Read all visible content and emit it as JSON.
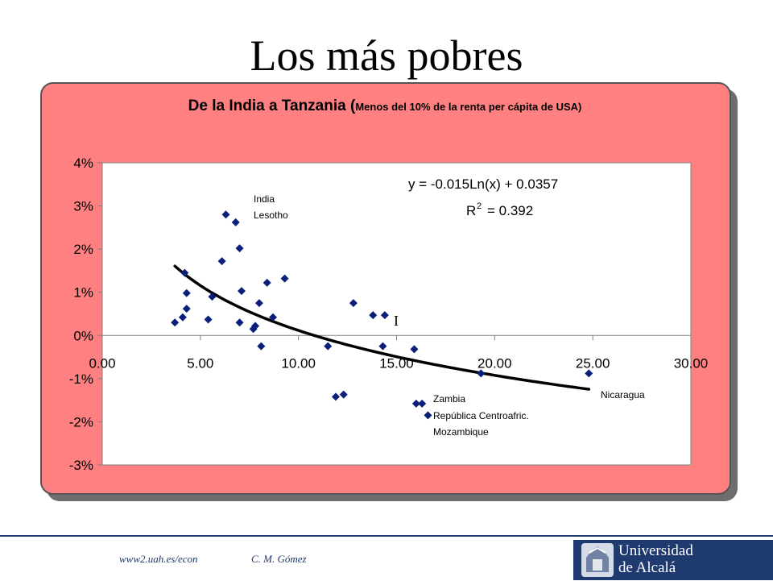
{
  "slide": {
    "title": "Los más pobres"
  },
  "footer": {
    "url": "www2.uah.es/econ",
    "author": "C. M. Gómez",
    "logo_line1": "Universidad",
    "logo_line2": "de Alcalá"
  },
  "chart_data": {
    "type": "scatter",
    "title": "De la India a Tanzania (",
    "subtitle": "Menos del 10% de la renta per cápita de USA)",
    "xlim": [
      0,
      30
    ],
    "ylim": [
      -0.03,
      0.04
    ],
    "x_ticks": [
      0,
      5,
      10,
      15,
      20,
      25,
      30
    ],
    "x_tick_labels": [
      "0.00",
      "5.00",
      "10.00",
      "15.00",
      "20.00",
      "25.00",
      "30.00"
    ],
    "y_ticks": [
      0.04,
      0.03,
      0.02,
      0.01,
      0,
      -0.01,
      -0.02,
      -0.03
    ],
    "y_tick_labels": [
      "4%",
      "3%",
      "2%",
      "1%",
      "0%",
      "-1%",
      "-2%",
      "-3%"
    ],
    "grid": false,
    "marker_color": "#0a1f7a",
    "points": [
      {
        "x": 3.7,
        "y": 0.003
      },
      {
        "x": 4.1,
        "y": 0.0042
      },
      {
        "x": 4.2,
        "y": 0.0145
      },
      {
        "x": 4.3,
        "y": 0.0098
      },
      {
        "x": 4.3,
        "y": 0.0062
      },
      {
        "x": 5.4,
        "y": 0.0037
      },
      {
        "x": 5.6,
        "y": 0.009
      },
      {
        "x": 6.1,
        "y": 0.0172
      },
      {
        "x": 6.3,
        "y": 0.028
      },
      {
        "x": 6.8,
        "y": 0.0262
      },
      {
        "x": 7.0,
        "y": 0.0202
      },
      {
        "x": 7.0,
        "y": 0.003
      },
      {
        "x": 7.1,
        "y": 0.0103
      },
      {
        "x": 7.7,
        "y": 0.0015
      },
      {
        "x": 7.8,
        "y": 0.0022
      },
      {
        "x": 8.0,
        "y": 0.0075
      },
      {
        "x": 8.1,
        "y": -0.0025
      },
      {
        "x": 8.4,
        "y": 0.0122
      },
      {
        "x": 8.7,
        "y": 0.0042
      },
      {
        "x": 9.3,
        "y": 0.0132
      },
      {
        "x": 11.5,
        "y": -0.0025
      },
      {
        "x": 11.9,
        "y": -0.0142
      },
      {
        "x": 12.3,
        "y": -0.0137
      },
      {
        "x": 12.8,
        "y": 0.0075
      },
      {
        "x": 13.8,
        "y": 0.0047
      },
      {
        "x": 14.3,
        "y": -0.0025
      },
      {
        "x": 14.4,
        "y": 0.0047
      },
      {
        "x": 15.9,
        "y": -0.0032
      },
      {
        "x": 16.0,
        "y": -0.0158
      },
      {
        "x": 16.3,
        "y": -0.0158
      },
      {
        "x": 16.6,
        "y": -0.0185
      },
      {
        "x": 19.3,
        "y": -0.0088
      },
      {
        "x": 24.8,
        "y": -0.0088
      }
    ],
    "trendline": {
      "type": "logarithmic",
      "a": -0.015,
      "b": 0.0357,
      "x_range": [
        3.7,
        24.8
      ],
      "equation_label": "y = -0.015Ln(x) + 0.0357",
      "r2_label": "R",
      "r2_sup": "2",
      "r2_value": "= 0.392"
    },
    "annotations": [
      {
        "id": "india",
        "text": "India"
      },
      {
        "id": "lesotho",
        "text": "Lesotho"
      },
      {
        "id": "zambia",
        "text": "Zambia"
      },
      {
        "id": "rca",
        "text": "República Centroafric."
      },
      {
        "id": "mozambique",
        "text": "Mozambique"
      },
      {
        "id": "nicaragua",
        "text": "Nicaragua"
      },
      {
        "id": "cursor",
        "text": "I"
      }
    ]
  }
}
